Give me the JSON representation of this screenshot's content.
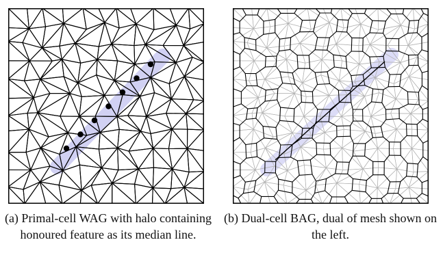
{
  "figure": {
    "panels": [
      {
        "id": "a",
        "kind": "primal-cell-mesh",
        "caption": "(a) Primal-cell WAG with halo containing honoured feature as its median line.",
        "halo_color": "#c9c9f2",
        "edge_color": "#000000",
        "feature_nodes": 7
      },
      {
        "id": "b",
        "kind": "dual-cell-mesh",
        "caption": "(b) Dual-cell BAG, dual of mesh shown on the left.",
        "halo_color": "#d6d6f6",
        "dual_edge_color": "#000000",
        "primal_edge_color": "#b4b4b4"
      }
    ]
  }
}
